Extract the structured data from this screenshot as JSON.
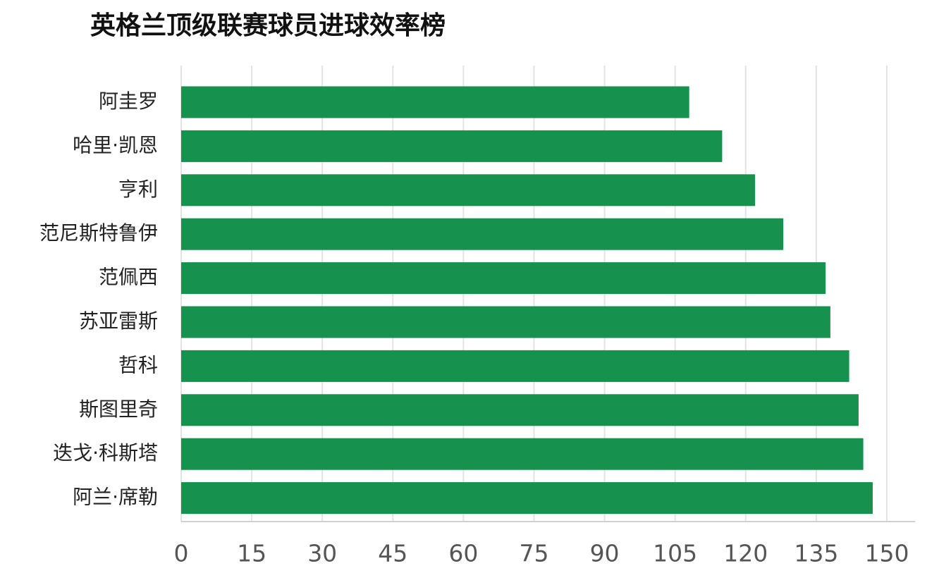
{
  "chart_data": {
    "type": "barh",
    "title": "英格兰顶级联赛球员进球效率榜",
    "categories": [
      "阿圭罗",
      "哈里·凯恩",
      "亨利",
      "范尼斯特鲁伊",
      "范佩西",
      "苏亚雷斯",
      "哲科",
      "斯图里奇",
      "迭戈·科斯塔",
      "阿兰·席勒"
    ],
    "values": [
      108,
      115,
      122,
      128,
      137,
      138,
      142,
      144,
      145,
      147
    ],
    "color": "#16924e",
    "xlim": [
      0,
      156
    ],
    "xticks": [
      0,
      15,
      30,
      45,
      60,
      75,
      90,
      105,
      120,
      135,
      150
    ],
    "grid": true
  }
}
